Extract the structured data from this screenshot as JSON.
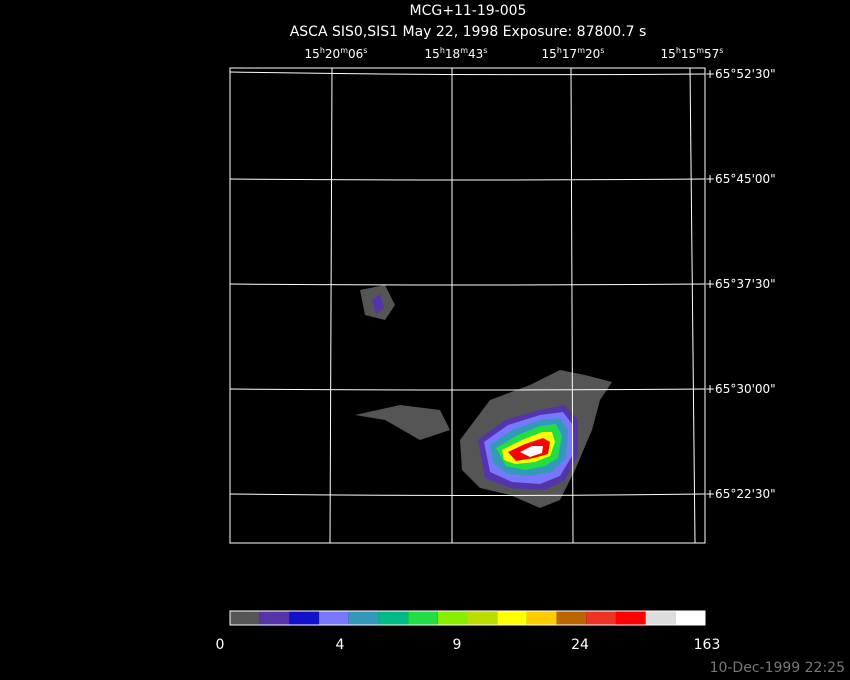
{
  "header": {
    "title": "MCG+11-19-005",
    "subtitle": "ASCA SIS0,SIS1 May 22, 1998 Exposure: 87800.7 s"
  },
  "ra_labels": [
    [
      "15",
      "h",
      "20",
      "m",
      "06",
      "s"
    ],
    [
      "15",
      "h",
      "18",
      "m",
      "43",
      "s"
    ],
    [
      "15",
      "h",
      "17",
      "m",
      "20",
      "s"
    ],
    [
      "15",
      "h",
      "15",
      "m",
      "57",
      "s"
    ]
  ],
  "dec_labels": [
    "+65°52'30\"",
    "+65°45'00\"",
    "+65°37'30\"",
    "+65°30'00\"",
    "+65°22'30\""
  ],
  "colorbar": {
    "colors": [
      "#555555",
      "#5533aa",
      "#1111cc",
      "#7777ff",
      "#3399bb",
      "#00bb88",
      "#22dd44",
      "#88ee00",
      "#bbdd00",
      "#ffff00",
      "#ffcc00",
      "#bb6600",
      "#ee3322",
      "#ff0000",
      "#dddddd",
      "#ffffff"
    ],
    "labels": [
      "0",
      "4",
      "9",
      "24",
      "163"
    ]
  },
  "timestamp": "10-Dec-1999 22:25"
}
